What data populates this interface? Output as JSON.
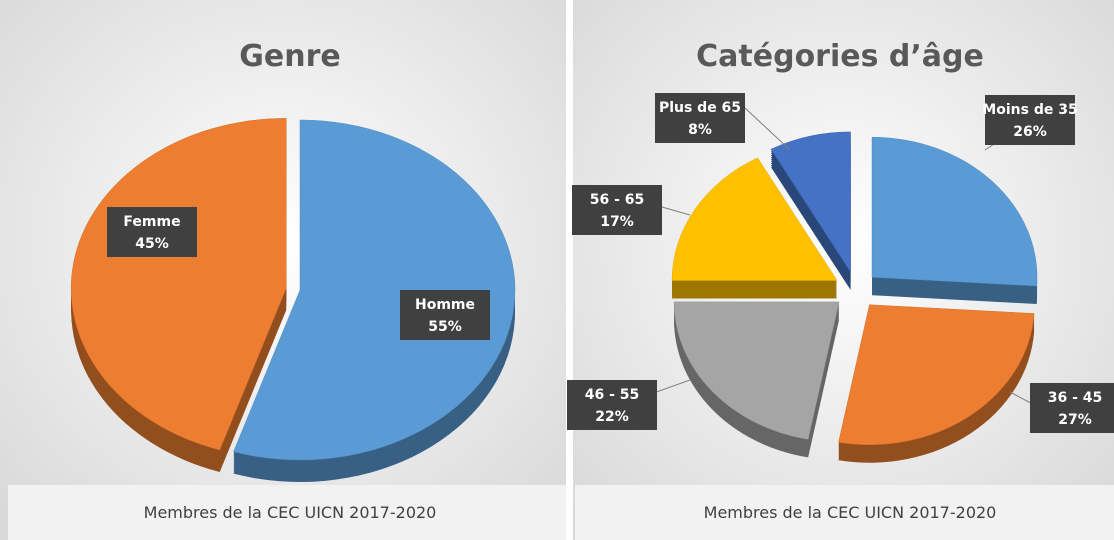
{
  "chart_data": [
    {
      "type": "pie",
      "title": "Genre",
      "caption": "Membres de la CEC UICN 2017-2020",
      "categories": [
        "Homme",
        "Femme"
      ],
      "values": [
        55,
        45
      ],
      "value_labels": [
        "55%",
        "45%"
      ],
      "colors": [
        "#5b9bd5",
        "#ed7d31"
      ]
    },
    {
      "type": "pie",
      "title": "Catégories d’âge",
      "caption": "Membres de la CEC UICN 2017-2020",
      "categories": [
        "Moins de 35",
        "36 - 45",
        "46 - 55",
        "56 - 65",
        "Plus de 65"
      ],
      "values": [
        26,
        27,
        22,
        17,
        8
      ],
      "value_labels": [
        "26%",
        "27%",
        "22%",
        "17%",
        "8%"
      ],
      "colors": [
        "#5b9bd5",
        "#ed7d31",
        "#a5a5a5",
        "#ffc000",
        "#4472c4"
      ]
    }
  ]
}
